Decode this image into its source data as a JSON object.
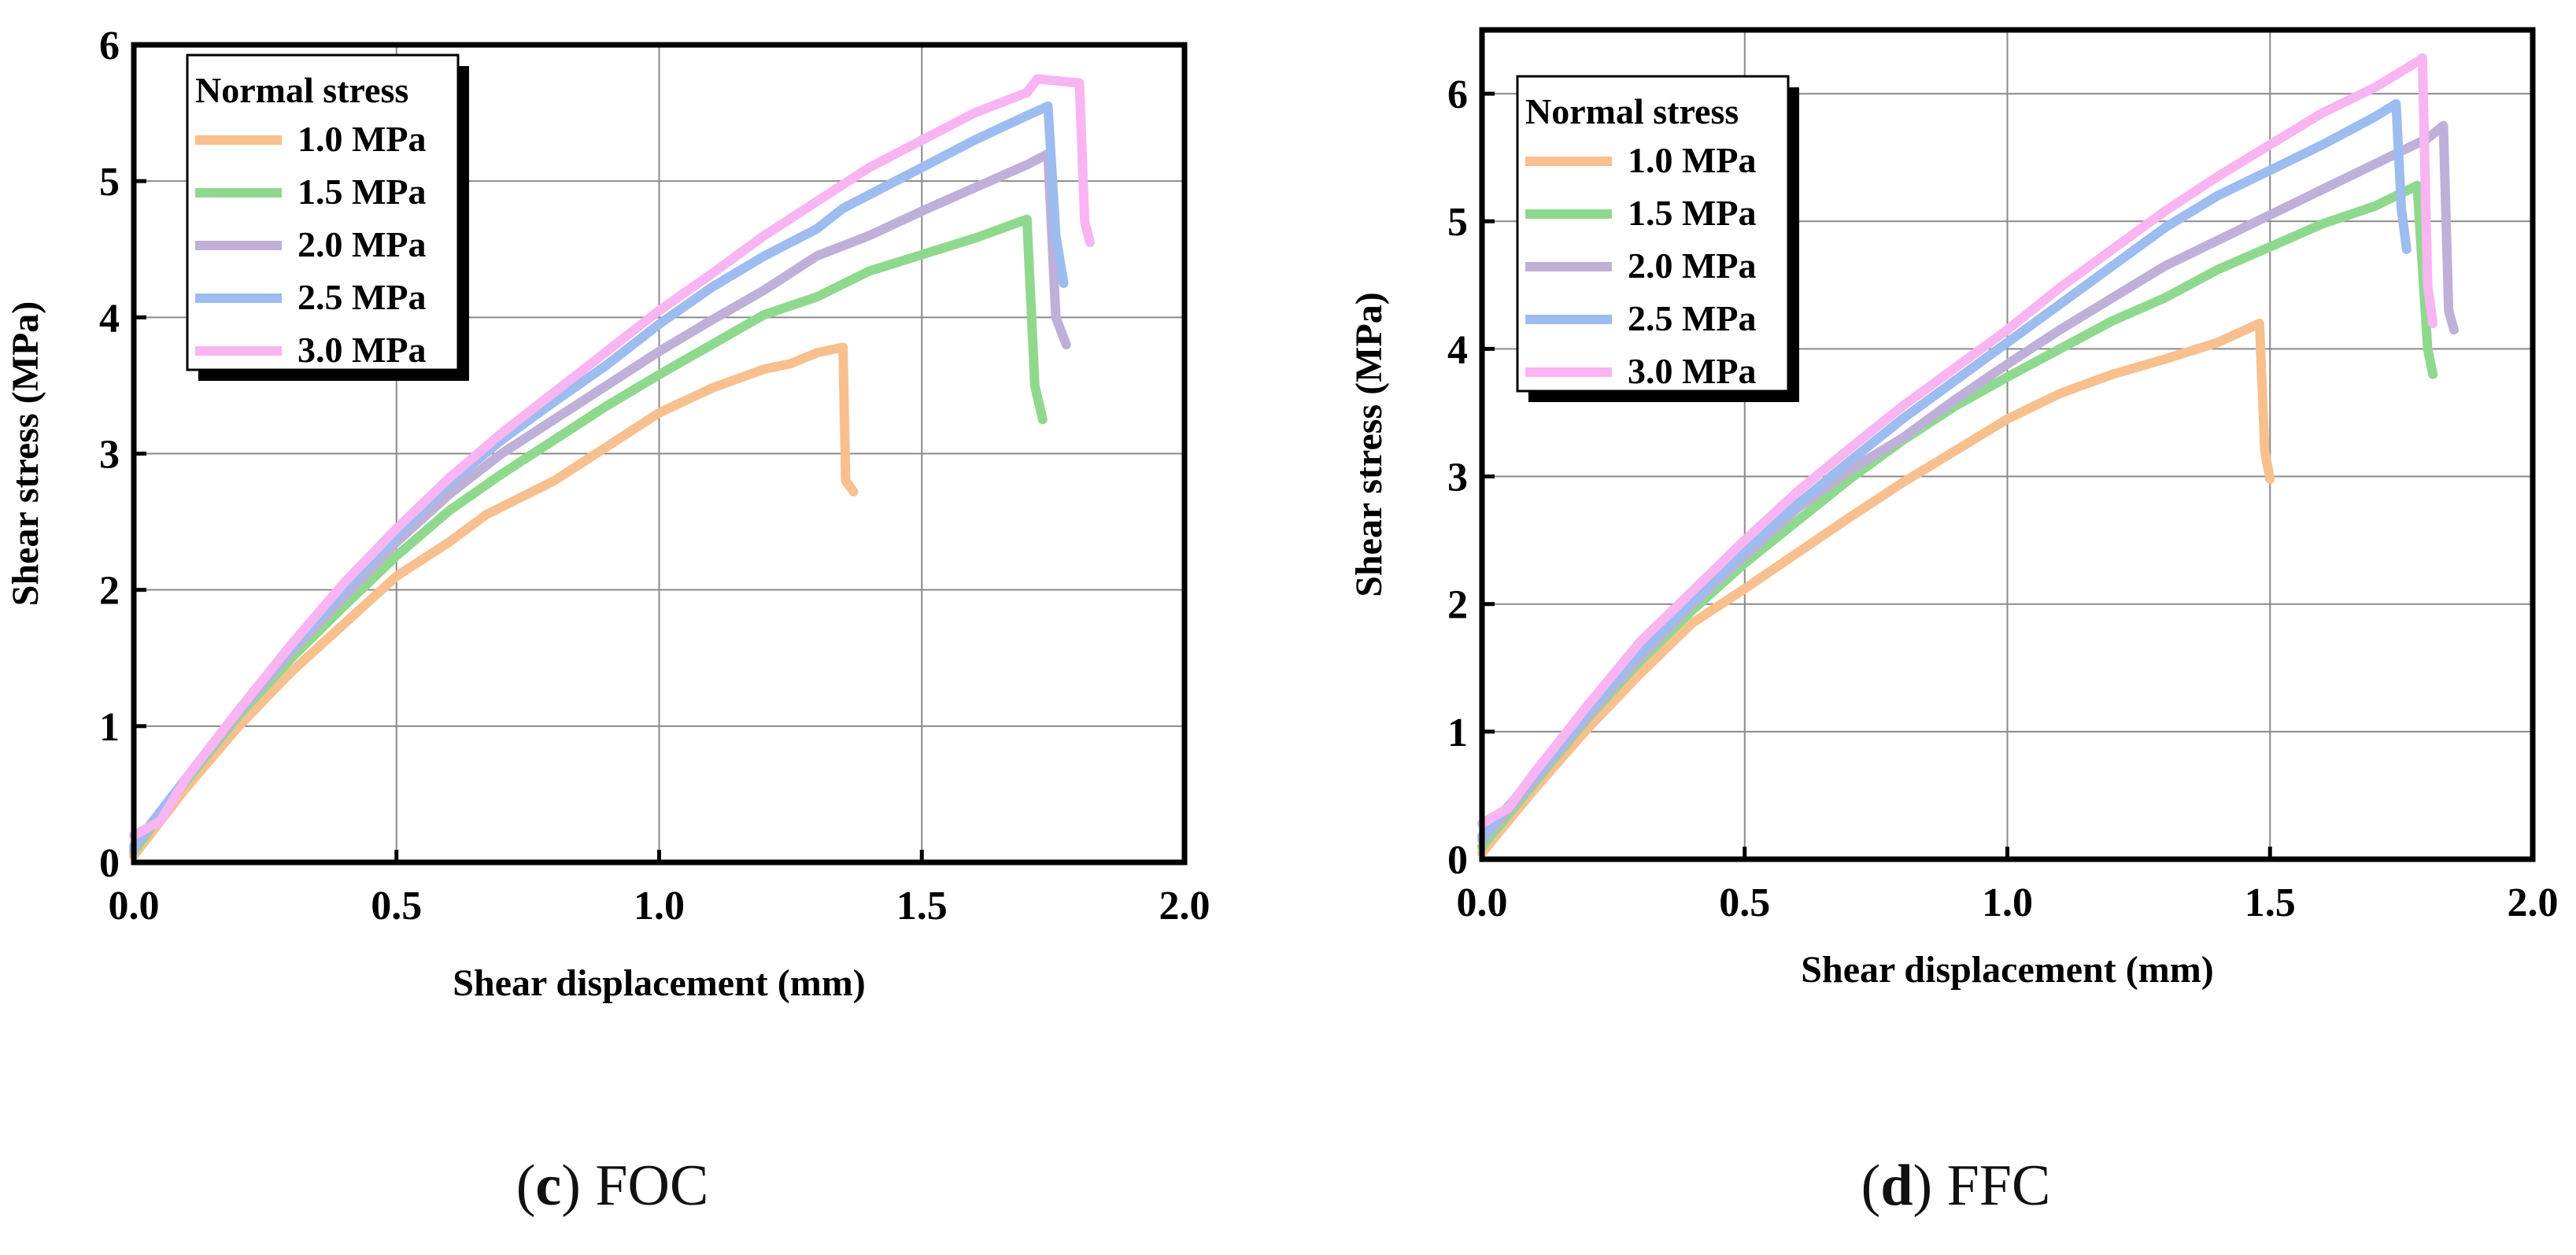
{
  "figure": {
    "captions": [
      {
        "letter": "c",
        "name": "FOC",
        "open": "(",
        "close": ")"
      },
      {
        "letter": "d",
        "name": "FFC",
        "open": "(",
        "close": ")"
      }
    ]
  },
  "chart_data": [
    {
      "panel": "c",
      "type": "line",
      "title": "",
      "xlabel": "Shear displacement (mm)",
      "ylabel": "Shear stress (MPa)",
      "xlim": [
        0,
        2.0
      ],
      "ylim": [
        0,
        6
      ],
      "xticks": [
        0.0,
        0.5,
        1.0,
        1.5,
        2.0
      ],
      "xtick_labels": [
        "0.0",
        "0.5",
        "1.0",
        "1.5",
        "2.0"
      ],
      "yticks": [
        0,
        1,
        2,
        3,
        4,
        5,
        6
      ],
      "ytick_labels": [
        "0",
        "1",
        "2",
        "3",
        "4",
        "5",
        "6"
      ],
      "grid": true,
      "legend": {
        "title": "Normal stress",
        "position": "top-left"
      },
      "series": [
        {
          "name": "1.0 MPa",
          "color": "#f8c08f",
          "points": [
            [
              0,
              0.05
            ],
            [
              0.1,
              0.55
            ],
            [
              0.2,
              1.0
            ],
            [
              0.3,
              1.4
            ],
            [
              0.4,
              1.75
            ],
            [
              0.5,
              2.1
            ],
            [
              0.6,
              2.35
            ],
            [
              0.67,
              2.55
            ],
            [
              0.8,
              2.8
            ],
            [
              0.9,
              3.05
            ],
            [
              1.0,
              3.3
            ],
            [
              1.1,
              3.48
            ],
            [
              1.2,
              3.62
            ],
            [
              1.25,
              3.66
            ],
            [
              1.3,
              3.74
            ],
            [
              1.35,
              3.78
            ],
            [
              1.355,
              2.8
            ],
            [
              1.37,
              2.72
            ]
          ]
        },
        {
          "name": "1.5 MPa",
          "color": "#8fd98f",
          "points": [
            [
              0,
              0.08
            ],
            [
              0.1,
              0.6
            ],
            [
              0.2,
              1.08
            ],
            [
              0.3,
              1.5
            ],
            [
              0.4,
              1.88
            ],
            [
              0.5,
              2.25
            ],
            [
              0.6,
              2.58
            ],
            [
              0.7,
              2.85
            ],
            [
              0.8,
              3.1
            ],
            [
              0.9,
              3.35
            ],
            [
              1.0,
              3.58
            ],
            [
              1.1,
              3.8
            ],
            [
              1.2,
              4.02
            ],
            [
              1.3,
              4.15
            ],
            [
              1.4,
              4.34
            ],
            [
              1.5,
              4.46
            ],
            [
              1.6,
              4.58
            ],
            [
              1.7,
              4.72
            ],
            [
              1.715,
              3.5
            ],
            [
              1.73,
              3.25
            ]
          ]
        },
        {
          "name": "2.0 MPa",
          "color": "#bfb0d9",
          "points": [
            [
              0,
              0.1
            ],
            [
              0.1,
              0.62
            ],
            [
              0.2,
              1.1
            ],
            [
              0.3,
              1.55
            ],
            [
              0.4,
              1.95
            ],
            [
              0.5,
              2.35
            ],
            [
              0.6,
              2.7
            ],
            [
              0.7,
              3.0
            ],
            [
              0.8,
              3.25
            ],
            [
              0.9,
              3.5
            ],
            [
              1.0,
              3.75
            ],
            [
              1.1,
              3.98
            ],
            [
              1.2,
              4.2
            ],
            [
              1.3,
              4.45
            ],
            [
              1.4,
              4.6
            ],
            [
              1.5,
              4.78
            ],
            [
              1.6,
              4.95
            ],
            [
              1.7,
              5.12
            ],
            [
              1.74,
              5.2
            ],
            [
              1.755,
              4.0
            ],
            [
              1.775,
              3.8
            ]
          ]
        },
        {
          "name": "2.5 MPa",
          "color": "#9dbcf0",
          "points": [
            [
              0,
              0.12
            ],
            [
              0.1,
              0.62
            ],
            [
              0.2,
              1.12
            ],
            [
              0.3,
              1.58
            ],
            [
              0.4,
              2.0
            ],
            [
              0.5,
              2.4
            ],
            [
              0.6,
              2.78
            ],
            [
              0.7,
              3.1
            ],
            [
              0.8,
              3.38
            ],
            [
              0.9,
              3.65
            ],
            [
              1.0,
              3.95
            ],
            [
              1.1,
              4.22
            ],
            [
              1.2,
              4.45
            ],
            [
              1.3,
              4.65
            ],
            [
              1.35,
              4.8
            ],
            [
              1.4,
              4.9
            ],
            [
              1.5,
              5.1
            ],
            [
              1.6,
              5.3
            ],
            [
              1.7,
              5.48
            ],
            [
              1.74,
              5.55
            ],
            [
              1.755,
              4.6
            ],
            [
              1.77,
              4.25
            ]
          ]
        },
        {
          "name": "3.0 MPa",
          "color": "#f9b4f2",
          "points": [
            [
              0,
              0.2
            ],
            [
              0.05,
              0.3
            ],
            [
              0.1,
              0.62
            ],
            [
              0.2,
              1.12
            ],
            [
              0.3,
              1.6
            ],
            [
              0.4,
              2.05
            ],
            [
              0.5,
              2.45
            ],
            [
              0.6,
              2.82
            ],
            [
              0.7,
              3.15
            ],
            [
              0.8,
              3.45
            ],
            [
              0.9,
              3.75
            ],
            [
              1.0,
              4.05
            ],
            [
              1.1,
              4.32
            ],
            [
              1.2,
              4.6
            ],
            [
              1.3,
              4.85
            ],
            [
              1.4,
              5.1
            ],
            [
              1.5,
              5.3
            ],
            [
              1.6,
              5.5
            ],
            [
              1.7,
              5.65
            ],
            [
              1.72,
              5.75
            ],
            [
              1.8,
              5.72
            ],
            [
              1.81,
              4.7
            ],
            [
              1.82,
              4.55
            ]
          ]
        }
      ]
    },
    {
      "panel": "d",
      "type": "line",
      "title": "",
      "xlabel": "Shear displacement (mm)",
      "ylabel": "Shear stress (MPa)",
      "xlim": [
        0,
        2.0
      ],
      "ylim": [
        0,
        6.5
      ],
      "xticks": [
        0.0,
        0.5,
        1.0,
        1.5,
        2.0
      ],
      "xtick_labels": [
        "0.0",
        "0.5",
        "1.0",
        "1.5",
        "2.0"
      ],
      "yticks": [
        0,
        1,
        2,
        3,
        4,
        5,
        6
      ],
      "ytick_labels": [
        "0",
        "1",
        "2",
        "3",
        "4",
        "5",
        "6"
      ],
      "grid": true,
      "legend": {
        "title": "Normal stress",
        "position": "top-left"
      },
      "series": [
        {
          "name": "1.0 MPa",
          "color": "#f8c08f",
          "points": [
            [
              0,
              0.05
            ],
            [
              0.1,
              0.55
            ],
            [
              0.2,
              1.02
            ],
            [
              0.3,
              1.45
            ],
            [
              0.4,
              1.85
            ],
            [
              0.5,
              2.12
            ],
            [
              0.6,
              2.4
            ],
            [
              0.7,
              2.68
            ],
            [
              0.8,
              2.95
            ],
            [
              0.9,
              3.2
            ],
            [
              1.0,
              3.45
            ],
            [
              1.1,
              3.65
            ],
            [
              1.2,
              3.8
            ],
            [
              1.3,
              3.92
            ],
            [
              1.4,
              4.05
            ],
            [
              1.48,
              4.2
            ],
            [
              1.49,
              3.2
            ],
            [
              1.5,
              2.98
            ]
          ]
        },
        {
          "name": "1.5 MPa",
          "color": "#8fd98f",
          "points": [
            [
              0,
              0.1
            ],
            [
              0.1,
              0.6
            ],
            [
              0.2,
              1.1
            ],
            [
              0.3,
              1.55
            ],
            [
              0.4,
              1.95
            ],
            [
              0.5,
              2.32
            ],
            [
              0.6,
              2.65
            ],
            [
              0.7,
              2.98
            ],
            [
              0.8,
              3.28
            ],
            [
              0.9,
              3.55
            ],
            [
              1.0,
              3.78
            ],
            [
              1.1,
              4.0
            ],
            [
              1.2,
              4.22
            ],
            [
              1.3,
              4.4
            ],
            [
              1.4,
              4.62
            ],
            [
              1.5,
              4.8
            ],
            [
              1.6,
              4.98
            ],
            [
              1.7,
              5.12
            ],
            [
              1.78,
              5.28
            ],
            [
              1.8,
              4.0
            ],
            [
              1.81,
              3.8
            ]
          ]
        },
        {
          "name": "2.0 MPa",
          "color": "#bfb0d9",
          "points": [
            [
              0,
              0.15
            ],
            [
              0.1,
              0.62
            ],
            [
              0.2,
              1.12
            ],
            [
              0.3,
              1.58
            ],
            [
              0.4,
              2.0
            ],
            [
              0.5,
              2.38
            ],
            [
              0.6,
              2.75
            ],
            [
              0.7,
              3.05
            ],
            [
              0.8,
              3.3
            ],
            [
              0.9,
              3.6
            ],
            [
              1.0,
              3.88
            ],
            [
              1.1,
              4.15
            ],
            [
              1.2,
              4.4
            ],
            [
              1.3,
              4.65
            ],
            [
              1.4,
              4.85
            ],
            [
              1.5,
              5.05
            ],
            [
              1.6,
              5.25
            ],
            [
              1.7,
              5.45
            ],
            [
              1.8,
              5.65
            ],
            [
              1.83,
              5.75
            ],
            [
              1.84,
              4.3
            ],
            [
              1.85,
              4.15
            ]
          ]
        },
        {
          "name": "2.5 MPa",
          "color": "#9dbcf0",
          "points": [
            [
              0,
              0.18
            ],
            [
              0.1,
              0.65
            ],
            [
              0.2,
              1.15
            ],
            [
              0.3,
              1.62
            ],
            [
              0.4,
              2.02
            ],
            [
              0.5,
              2.42
            ],
            [
              0.6,
              2.78
            ],
            [
              0.7,
              3.12
            ],
            [
              0.8,
              3.45
            ],
            [
              0.9,
              3.75
            ],
            [
              1.0,
              4.05
            ],
            [
              1.1,
              4.35
            ],
            [
              1.2,
              4.65
            ],
            [
              1.3,
              4.95
            ],
            [
              1.4,
              5.2
            ],
            [
              1.5,
              5.4
            ],
            [
              1.6,
              5.6
            ],
            [
              1.7,
              5.82
            ],
            [
              1.74,
              5.92
            ],
            [
              1.75,
              5.1
            ],
            [
              1.76,
              4.78
            ]
          ]
        },
        {
          "name": "3.0 MPa",
          "color": "#f9b4f2",
          "points": [
            [
              0,
              0.28
            ],
            [
              0.05,
              0.4
            ],
            [
              0.1,
              0.68
            ],
            [
              0.2,
              1.2
            ],
            [
              0.3,
              1.7
            ],
            [
              0.4,
              2.1
            ],
            [
              0.5,
              2.5
            ],
            [
              0.6,
              2.88
            ],
            [
              0.7,
              3.22
            ],
            [
              0.8,
              3.55
            ],
            [
              0.9,
              3.85
            ],
            [
              1.0,
              4.15
            ],
            [
              1.1,
              4.48
            ],
            [
              1.2,
              4.78
            ],
            [
              1.3,
              5.08
            ],
            [
              1.4,
              5.35
            ],
            [
              1.5,
              5.6
            ],
            [
              1.6,
              5.85
            ],
            [
              1.7,
              6.05
            ],
            [
              1.78,
              6.25
            ],
            [
              1.79,
              6.28
            ],
            [
              1.8,
              4.5
            ],
            [
              1.81,
              4.2
            ]
          ]
        }
      ]
    }
  ]
}
